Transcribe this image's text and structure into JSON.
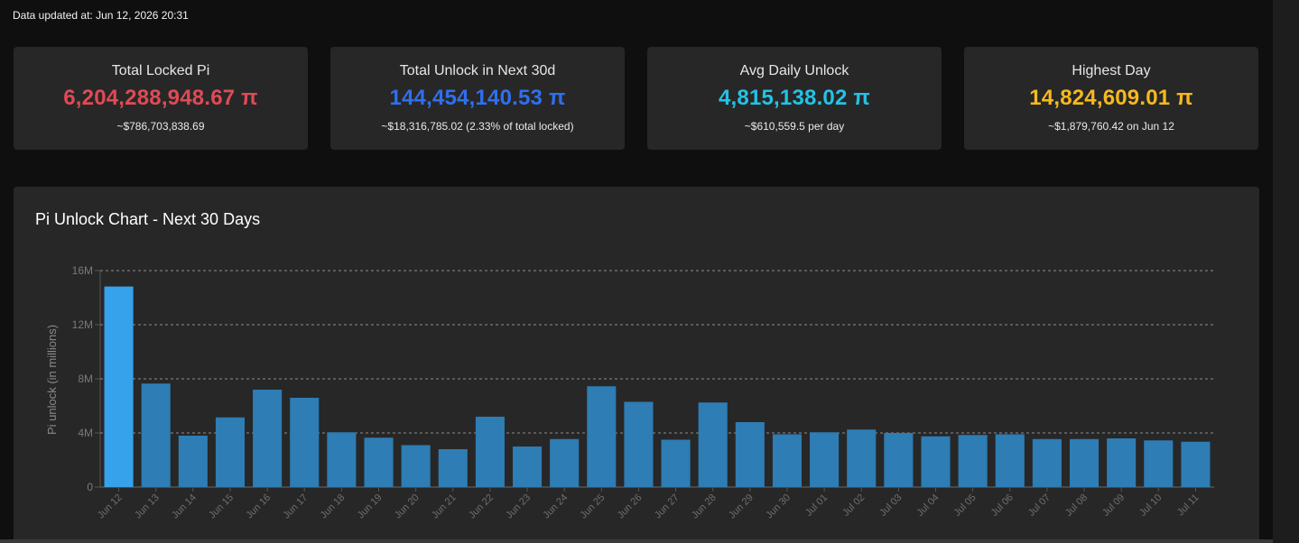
{
  "header": {
    "updated_text": "Data updated at: Jun 12, 2026 20:31"
  },
  "cards": [
    {
      "title": "Total Locked Pi",
      "value": "6,204,288,948.67 π",
      "sub": "~$786,703,838.69",
      "color": "#e04a55"
    },
    {
      "title": "Total Unlock in Next 30d",
      "value": "144,454,140.53 π",
      "sub": "~$18,316,785.02 (2.33% of total locked)",
      "color": "#2f6fef"
    },
    {
      "title": "Avg Daily Unlock",
      "value": "4,815,138.02 π",
      "sub": "~$610,559.5 per day",
      "color": "#22c3e6"
    },
    {
      "title": "Highest Day",
      "value": "14,824,609.01 π",
      "sub": "~$1,879,760.42 on Jun 12",
      "color": "#f6b91e"
    }
  ],
  "chart_data": {
    "type": "bar",
    "title": "Pi Unlock Chart - Next 30 Days",
    "ylabel": "Pi unlock (in millions)",
    "xlabel": "",
    "ylim": [
      0,
      16000000
    ],
    "yticks": [
      0,
      4000000,
      8000000,
      12000000,
      16000000
    ],
    "ytick_labels": [
      "0",
      "4M",
      "8M",
      "12M",
      "16M"
    ],
    "grid": true,
    "highlight_color": "#36a2eb",
    "bar_color": "#2e7db4",
    "categories": [
      "Jun 12",
      "Jun 13",
      "Jun 14",
      "Jun 15",
      "Jun 16",
      "Jun 17",
      "Jun 18",
      "Jun 19",
      "Jun 20",
      "Jun 21",
      "Jun 22",
      "Jun 23",
      "Jun 24",
      "Jun 25",
      "Jun 26",
      "Jun 27",
      "Jun 28",
      "Jun 29",
      "Jun 30",
      "Jul 01",
      "Jul 02",
      "Jul 03",
      "Jul 04",
      "Jul 05",
      "Jul 06",
      "Jul 07",
      "Jul 08",
      "Jul 09",
      "Jul 10",
      "Jul 11"
    ],
    "values": [
      14824609,
      7650000,
      3800000,
      5150000,
      7200000,
      6600000,
      4050000,
      3650000,
      3100000,
      2800000,
      5200000,
      3000000,
      3550000,
      7450000,
      6300000,
      3500000,
      6250000,
      4800000,
      3900000,
      4050000,
      4250000,
      4000000,
      3750000,
      3850000,
      3900000,
      3550000,
      3550000,
      3600000,
      3450000,
      3350000
    ]
  }
}
